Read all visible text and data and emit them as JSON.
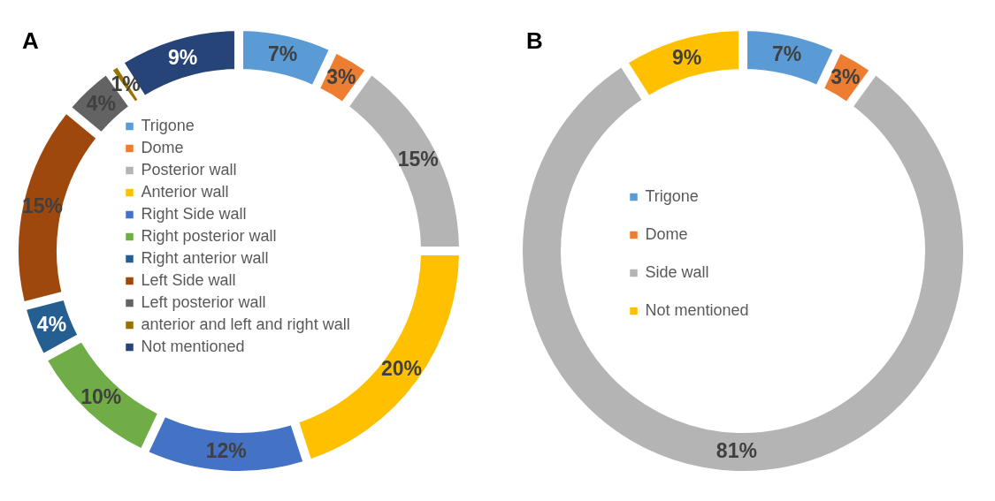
{
  "chart_data": [
    {
      "type": "donut",
      "title": "A",
      "legend": "center",
      "categories": [
        "Trigone",
        "Dome",
        "Posterior wall",
        "Anterior wall",
        "Right Side wall",
        "Right posterior wall",
        "Right anterior wall",
        "Left Side wall",
        "Left posterior wall",
        "anterior and left and right wall",
        "Not mentioned"
      ],
      "values": [
        7,
        3,
        15,
        20,
        12,
        10,
        4,
        15,
        4,
        1,
        9
      ],
      "value_labels": [
        "7%",
        "3%",
        "15%",
        "20%",
        "12%",
        "10%",
        "4%",
        "15%",
        "4%",
        "1%",
        "9%"
      ],
      "colors": [
        "#5b9bd5",
        "#ed7d31",
        "#b4b4b4",
        "#ffc000",
        "#4472c4",
        "#70ad47",
        "#255e91",
        "#9e480e",
        "#636363",
        "#997300",
        "#264478"
      ]
    },
    {
      "type": "donut",
      "title": "B",
      "legend": "center",
      "categories": [
        "Trigone",
        "Dome",
        "Side wall",
        "Not mentioned"
      ],
      "values": [
        7,
        3,
        81,
        9
      ],
      "value_labels": [
        "7%",
        "3%",
        "81%",
        "9%"
      ],
      "colors": [
        "#5b9bd5",
        "#ed7d31",
        "#b4b4b4",
        "#ffc000"
      ]
    }
  ]
}
